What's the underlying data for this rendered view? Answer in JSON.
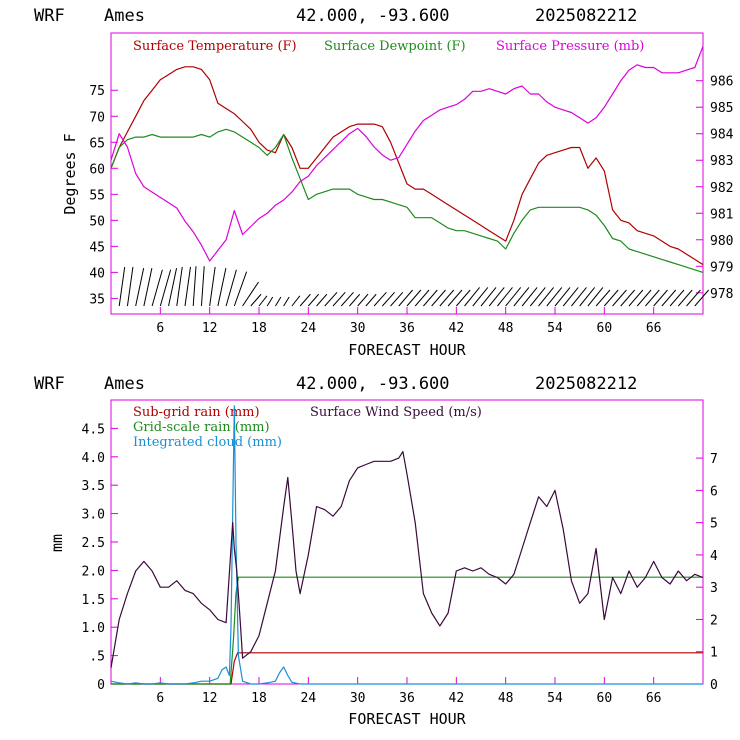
{
  "colors": {
    "temperature": "#b00000",
    "dewpoint": "#1f8a1f",
    "pressure": "#dd00dd",
    "subgrid_rain": "#b00000",
    "gridscale_rain": "#1f8a1f",
    "cloud": "#1a8fd6",
    "wind_speed": "#3a0a3a",
    "axis": "#dd00dd",
    "wind_barb": "#000000"
  },
  "chart_data": [
    {
      "type": "line",
      "header": {
        "model": "WRF",
        "station": "Ames",
        "coords": "42.000, -93.600",
        "run": "2025082212"
      },
      "xlabel": "FORECAST HOUR",
      "ylabel": "Degrees F",
      "xlim": [
        0,
        72
      ],
      "ylim": [
        32,
        86
      ],
      "y2lim": [
        977.2,
        987.8
      ],
      "x_ticks": [
        6,
        12,
        18,
        24,
        30,
        36,
        42,
        48,
        54,
        60,
        66
      ],
      "x_tick_labels": [
        "6",
        "12",
        "18",
        "24",
        "30",
        "36",
        "42",
        "48",
        "54",
        "60",
        "66"
      ],
      "y_ticks": [
        35,
        40,
        45,
        50,
        55,
        60,
        65,
        70,
        75
      ],
      "y_tick_labels": [
        "35",
        "40",
        "45",
        "50",
        "55",
        "60",
        "65",
        "70",
        "75"
      ],
      "y2_ticks": [
        978,
        979,
        980,
        981,
        982,
        983,
        984,
        985,
        986
      ],
      "y2_tick_labels": [
        "978",
        "979",
        "980",
        "981",
        "982",
        "983",
        "984",
        "985",
        "986"
      ],
      "legend": [
        "Surface Temperature (F)",
        "Surface Dewpoint (F)",
        "Surface Pressure (mb)"
      ],
      "series": [
        {
          "name": "Surface Temperature (F)",
          "axis": "left",
          "x": [
            0,
            1,
            2,
            3,
            4,
            5,
            6,
            7,
            8,
            9,
            10,
            11,
            12,
            13,
            14,
            15,
            16,
            17,
            18,
            19,
            20,
            21,
            22,
            23,
            24,
            25,
            26,
            27,
            28,
            29,
            30,
            31,
            32,
            33,
            34,
            35,
            36,
            37,
            38,
            39,
            40,
            41,
            42,
            43,
            44,
            45,
            46,
            47,
            48,
            49,
            50,
            51,
            52,
            53,
            54,
            55,
            56,
            57,
            58,
            59,
            60,
            61,
            62,
            63,
            64,
            65,
            66,
            67,
            68,
            69,
            70,
            71,
            72
          ],
          "y": [
            60,
            64,
            67,
            70,
            73,
            75,
            77,
            78,
            79,
            79.5,
            79.5,
            79,
            77,
            72.5,
            71.5,
            70.5,
            69,
            67.5,
            65,
            63.5,
            63,
            66.5,
            64,
            60,
            60,
            62,
            64,
            66,
            67,
            68,
            68.5,
            68.5,
            68.5,
            68,
            65,
            61,
            57,
            56,
            56,
            55,
            54,
            53,
            52,
            51,
            50,
            49,
            48,
            47,
            46,
            50,
            55,
            58,
            61,
            62.5,
            63,
            63.5,
            64,
            64,
            60,
            62,
            59.5,
            52,
            50,
            49.5,
            48,
            47.5,
            47,
            46,
            45,
            44.5,
            43.5,
            42.5,
            41.5
          ]
        },
        {
          "name": "Surface Dewpoint (F)",
          "axis": "left",
          "x": [
            0,
            1,
            2,
            3,
            4,
            5,
            6,
            7,
            8,
            9,
            10,
            11,
            12,
            13,
            14,
            15,
            16,
            17,
            18,
            19,
            20,
            21,
            22,
            23,
            24,
            25,
            26,
            27,
            28,
            29,
            30,
            31,
            32,
            33,
            34,
            35,
            36,
            37,
            38,
            39,
            40,
            41,
            42,
            43,
            44,
            45,
            46,
            47,
            48,
            49,
            50,
            51,
            52,
            53,
            54,
            55,
            56,
            57,
            58,
            59,
            60,
            61,
            62,
            63,
            64,
            65,
            66,
            67,
            68,
            69,
            70,
            71,
            72
          ],
          "y": [
            60,
            64,
            65.5,
            66,
            66,
            66.5,
            66,
            66,
            66,
            66,
            66,
            66.5,
            66,
            67,
            67.5,
            67,
            66,
            65,
            64,
            62.5,
            64,
            66.5,
            62,
            58,
            54,
            55,
            55.5,
            56,
            56,
            56,
            55,
            54.5,
            54,
            54,
            53.5,
            53,
            52.5,
            50.5,
            50.5,
            50.5,
            49.5,
            48.5,
            48,
            48,
            47.5,
            47,
            46.5,
            46,
            44.5,
            47.5,
            50,
            52,
            52.5,
            52.5,
            52.5,
            52.5,
            52.5,
            52.5,
            52,
            51,
            49,
            46.5,
            46,
            44.5,
            44,
            43.5,
            43,
            42.5,
            42,
            41.5,
            41,
            40.5,
            40
          ]
        },
        {
          "name": "Surface Pressure (mb)",
          "axis": "right",
          "x": [
            0,
            1,
            2,
            3,
            4,
            5,
            6,
            7,
            8,
            9,
            10,
            11,
            12,
            13,
            14,
            15,
            16,
            17,
            18,
            19,
            20,
            21,
            22,
            23,
            24,
            25,
            26,
            27,
            28,
            29,
            30,
            31,
            32,
            33,
            34,
            35,
            36,
            37,
            38,
            39,
            40,
            41,
            42,
            43,
            44,
            45,
            46,
            47,
            48,
            49,
            50,
            51,
            52,
            53,
            54,
            55,
            56,
            57,
            58,
            59,
            60,
            61,
            62,
            63,
            64,
            65,
            66,
            67,
            68,
            69,
            70,
            71,
            72
          ],
          "y": [
            983,
            984,
            983.5,
            982.5,
            982,
            981.8,
            981.6,
            981.4,
            981.2,
            980.7,
            980.3,
            979.8,
            979.2,
            979.6,
            980,
            981.1,
            980.2,
            980.5,
            980.8,
            981,
            981.3,
            981.5,
            981.8,
            982.2,
            982.4,
            982.8,
            983.1,
            983.4,
            983.7,
            984,
            984.2,
            983.9,
            983.5,
            983.2,
            983,
            983.1,
            983.6,
            984.1,
            984.5,
            984.7,
            984.9,
            985,
            985.1,
            985.3,
            985.6,
            985.6,
            985.7,
            985.6,
            985.5,
            985.7,
            985.8,
            985.5,
            985.5,
            985.2,
            985,
            984.9,
            984.8,
            984.6,
            984.4,
            984.6,
            985,
            985.5,
            986,
            986.4,
            986.6,
            986.5,
            986.5,
            986.3,
            986.3,
            986.3,
            986.4,
            986.5,
            987.3
          ]
        }
      ],
      "wind_barbs": {
        "x": [
          1,
          2,
          3,
          4,
          5,
          6,
          7,
          8,
          9,
          10,
          11,
          12,
          13,
          14,
          15,
          16,
          17,
          18,
          19,
          20,
          21,
          22,
          23,
          24,
          25,
          26,
          27,
          28,
          29,
          30,
          31,
          32,
          33,
          34,
          35,
          36,
          37,
          38,
          39,
          40,
          41,
          42,
          43,
          44,
          45,
          46,
          47,
          48,
          49,
          50,
          51,
          52,
          53,
          54,
          55,
          56,
          57,
          58,
          59,
          60,
          61,
          62,
          63,
          64,
          65,
          66,
          67,
          68,
          69,
          70,
          71
        ],
        "direction_deg": [
          200,
          200,
          210,
          210,
          220,
          220,
          210,
          200,
          200,
          190,
          190,
          200,
          210,
          220,
          230,
          270,
          320,
          330,
          340,
          340,
          340,
          330,
          320,
          320,
          320,
          310,
          310,
          310,
          320,
          320,
          320,
          310,
          310,
          310,
          300,
          300,
          300,
          300,
          300,
          300,
          300,
          300,
          290,
          290,
          290,
          290,
          290,
          290,
          290,
          290,
          290,
          290,
          290,
          290,
          290,
          290,
          290,
          290,
          300,
          300,
          300,
          300,
          300,
          300,
          300,
          300,
          300,
          300,
          300,
          300,
          300
        ]
      }
    },
    {
      "type": "line",
      "header": {
        "model": "WRF",
        "station": "Ames",
        "coords": "42.000, -93.600",
        "run": "2025082212"
      },
      "xlabel": "FORECAST HOUR",
      "ylabel": "mm",
      "xlim": [
        0,
        72
      ],
      "ylim": [
        0,
        5.0
      ],
      "y2lim": [
        0,
        8.8
      ],
      "x_ticks": [
        6,
        12,
        18,
        24,
        30,
        36,
        42,
        48,
        54,
        60,
        66
      ],
      "x_tick_labels": [
        "6",
        "12",
        "18",
        "24",
        "30",
        "36",
        "42",
        "48",
        "54",
        "60",
        "66"
      ],
      "y_ticks": [
        0,
        0.5,
        1.0,
        1.5,
        2.0,
        2.5,
        3.0,
        3.5,
        4.0,
        4.5
      ],
      "y_tick_labels": [
        "0",
        ".5",
        "1.0",
        "1.5",
        "2.0",
        "2.5",
        "3.0",
        "3.5",
        "4.0",
        "4.5"
      ],
      "y2_ticks": [
        0,
        1,
        2,
        3,
        4,
        5,
        6,
        7
      ],
      "y2_tick_labels": [
        "0",
        "1",
        "2",
        "3",
        "4",
        "5",
        "6",
        "7"
      ],
      "legend": [
        "Sub-grid rain (mm)",
        "Grid-scale rain (mm)",
        "Integrated cloud (mm)",
        "Surface Wind Speed (m/s)"
      ],
      "series": [
        {
          "name": "Sub-grid rain (mm)",
          "axis": "left",
          "x": [
            0,
            14.6,
            15.0,
            15.4,
            16,
            72
          ],
          "y": [
            0,
            0,
            0.4,
            0.55,
            0.55,
            0.55
          ]
        },
        {
          "name": "Grid-scale rain (mm)",
          "axis": "left",
          "x": [
            0,
            14.5,
            14.9,
            15.2,
            15.5,
            72
          ],
          "y": [
            0,
            0,
            0.8,
            1.6,
            1.88,
            1.88
          ]
        },
        {
          "name": "Integrated cloud (mm)",
          "axis": "left",
          "x": [
            0,
            1,
            2,
            3,
            4,
            5,
            6,
            7,
            8,
            9,
            10,
            11,
            12,
            13,
            13.5,
            14,
            14.4,
            14.6,
            14.8,
            15.0,
            15.2,
            15.5,
            16,
            17,
            18,
            19,
            20,
            20.5,
            21,
            21.5,
            22,
            23,
            24,
            72
          ],
          "y": [
            0.05,
            0.02,
            0,
            0.02,
            0,
            0,
            0.02,
            0,
            0,
            0,
            0.02,
            0.05,
            0.05,
            0.1,
            0.25,
            0.3,
            0.15,
            1.0,
            3.0,
            4.9,
            2.5,
            0.5,
            0.05,
            0,
            0,
            0.02,
            0.05,
            0.2,
            0.3,
            0.15,
            0.03,
            0,
            0,
            0
          ]
        },
        {
          "name": "Surface Wind Speed (m/s)",
          "axis": "right",
          "x": [
            0,
            1,
            2,
            3,
            4,
            5,
            6,
            7,
            8,
            9,
            10,
            11,
            12,
            13,
            14,
            14.8,
            15,
            15.3,
            15.7,
            16,
            17,
            18,
            19,
            20,
            21,
            21.5,
            22,
            22.5,
            23,
            24,
            25,
            26,
            27,
            28,
            29,
            30,
            31,
            32,
            33,
            34,
            35,
            35.5,
            36,
            37,
            38,
            39,
            40,
            41,
            42,
            43,
            44,
            45,
            46,
            47,
            48,
            49,
            50,
            51,
            52,
            53,
            54,
            55,
            56,
            57,
            58,
            59,
            60,
            61,
            62,
            63,
            64,
            65,
            66,
            67,
            68,
            69,
            70,
            71,
            72
          ],
          "y": [
            0.5,
            2,
            2.8,
            3.5,
            3.8,
            3.5,
            3,
            3,
            3.2,
            2.9,
            2.8,
            2.5,
            2.3,
            2.0,
            1.9,
            5,
            4.2,
            3.5,
            2,
            0.8,
            1,
            1.5,
            2.5,
            3.5,
            5.5,
            6.4,
            5,
            3.5,
            2.8,
            4,
            5.5,
            5.4,
            5.2,
            5.5,
            6.3,
            6.7,
            6.8,
            6.9,
            6.9,
            6.9,
            7,
            7.2,
            6.5,
            5,
            2.8,
            2.2,
            1.8,
            2.2,
            3.5,
            3.6,
            3.5,
            3.6,
            3.4,
            3.3,
            3.1,
            3.4,
            4.2,
            5.0,
            5.8,
            5.5,
            6.0,
            4.8,
            3.2,
            2.5,
            2.8,
            4.2,
            2.0,
            3.3,
            2.8,
            3.5,
            3.0,
            3.3,
            3.8,
            3.3,
            3.1,
            3.5,
            3.2,
            3.4,
            3.3
          ]
        }
      ]
    }
  ]
}
